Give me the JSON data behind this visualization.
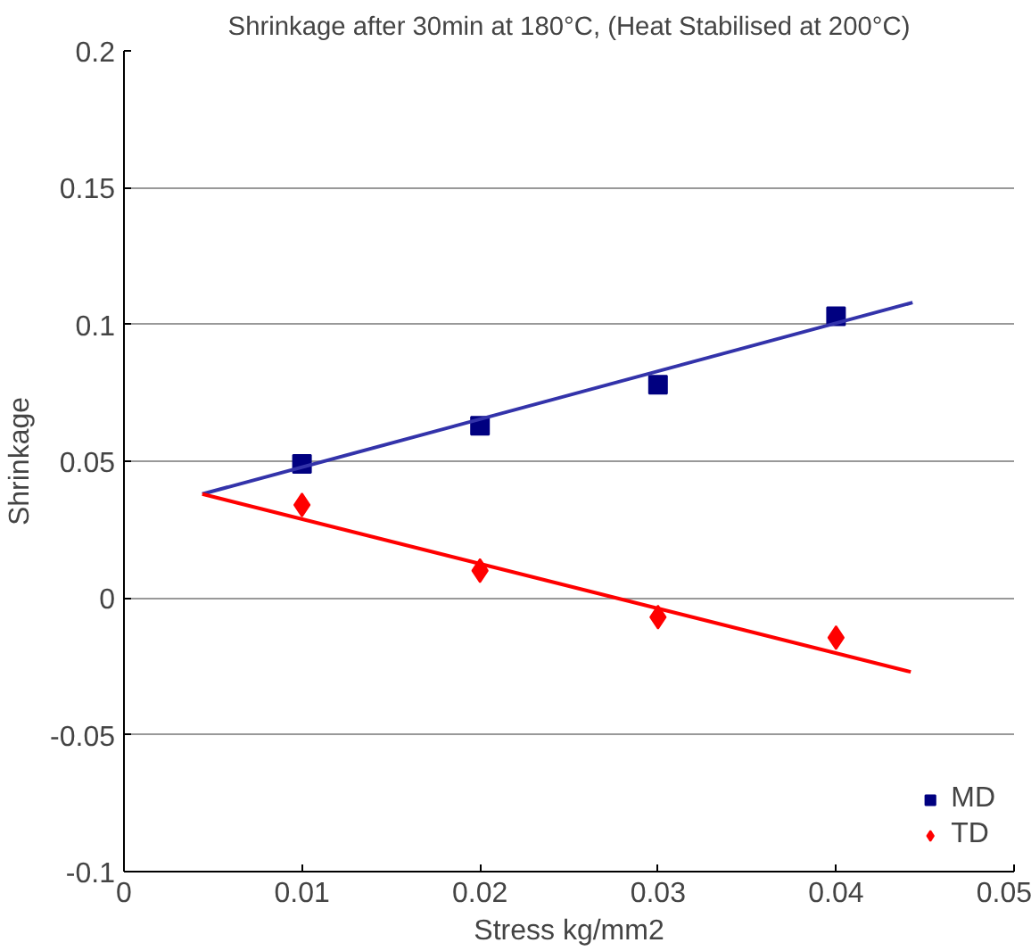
{
  "chart_data": {
    "type": "scatter",
    "title": "Shrinkage after 30min at 180°C, (Heat Stabilised at 200°C)",
    "xlabel": "Stress kg/mm2",
    "ylabel": "Shrinkage",
    "x": [
      0.01,
      0.02,
      0.03,
      0.04
    ],
    "series": [
      {
        "name": "MD",
        "color": "#000080",
        "marker": "square",
        "values": [
          0.049,
          0.063,
          0.078,
          0.103
        ]
      },
      {
        "name": "TD",
        "color": "#ff0000",
        "marker": "diamond",
        "values": [
          0.034,
          0.01,
          -0.007,
          -0.0145
        ]
      },
      {
        "type": "line",
        "color": "#3333aa",
        "x": [
          0.0044,
          0.0443
        ],
        "values": [
          0.038,
          0.108
        ]
      },
      {
        "type": "line",
        "color": "#ff0000",
        "x": [
          0.0044,
          0.0442
        ],
        "values": [
          0.038,
          -0.027
        ]
      }
    ],
    "xlim": [
      0,
      0.05
    ],
    "xticks": [
      0,
      0.01,
      0.02,
      0.03,
      0.04,
      0.05
    ],
    "ylim": [
      -0.1,
      0.2
    ],
    "yticks": [
      -0.1,
      -0.05,
      0,
      0.05,
      0.1,
      0.15,
      0.2
    ],
    "grid": "y",
    "legend": "bottom right"
  }
}
